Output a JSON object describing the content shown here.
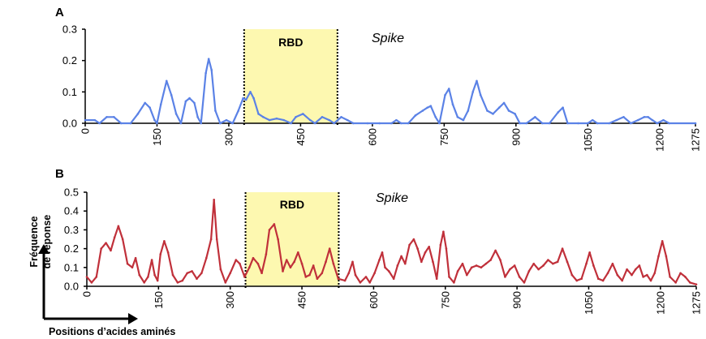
{
  "chart_data": [
    {
      "type": "line",
      "panel": "A",
      "region_label": "RBD",
      "region": [
        332,
        527
      ],
      "annotation": "Spike",
      "color": "#5b82e6",
      "ylim": [
        0,
        0.3
      ],
      "yticks": [
        0,
        0.1,
        0.2,
        0.3
      ],
      "ytick_labels": [
        "0.0",
        "0.1",
        "0.2",
        "0.3"
      ],
      "xlim": [
        0,
        1275
      ],
      "xticks": [
        0,
        150,
        300,
        450,
        600,
        750,
        900,
        1050,
        1200,
        1275
      ],
      "xtick_labels": [
        "0",
        "150",
        "300",
        "450",
        "600",
        "750",
        "900",
        "1050",
        "1200",
        "1275"
      ],
      "points": [
        [
          0,
          0.01
        ],
        [
          20,
          0.01
        ],
        [
          30,
          0.0
        ],
        [
          45,
          0.02
        ],
        [
          60,
          0.02
        ],
        [
          75,
          0.0
        ],
        [
          95,
          0.0
        ],
        [
          110,
          0.03
        ],
        [
          125,
          0.065
        ],
        [
          135,
          0.05
        ],
        [
          145,
          0.01
        ],
        [
          150,
          0.0
        ],
        [
          158,
          0.06
        ],
        [
          170,
          0.135
        ],
        [
          180,
          0.09
        ],
        [
          190,
          0.03
        ],
        [
          200,
          0.0
        ],
        [
          210,
          0.07
        ],
        [
          218,
          0.08
        ],
        [
          228,
          0.065
        ],
        [
          235,
          0.02
        ],
        [
          242,
          0.0
        ],
        [
          252,
          0.16
        ],
        [
          258,
          0.205
        ],
        [
          264,
          0.17
        ],
        [
          272,
          0.04
        ],
        [
          282,
          0.0
        ],
        [
          295,
          0.01
        ],
        [
          308,
          0.0
        ],
        [
          320,
          0.04
        ],
        [
          330,
          0.08
        ],
        [
          336,
          0.075
        ],
        [
          345,
          0.1
        ],
        [
          352,
          0.08
        ],
        [
          362,
          0.03
        ],
        [
          372,
          0.02
        ],
        [
          385,
          0.01
        ],
        [
          400,
          0.015
        ],
        [
          415,
          0.01
        ],
        [
          430,
          0.0
        ],
        [
          440,
          0.02
        ],
        [
          455,
          0.03
        ],
        [
          470,
          0.01
        ],
        [
          480,
          0.0
        ],
        [
          495,
          0.02
        ],
        [
          510,
          0.01
        ],
        [
          520,
          0.0
        ],
        [
          535,
          0.02
        ],
        [
          548,
          0.01
        ],
        [
          560,
          0.0
        ],
        [
          590,
          0.0
        ],
        [
          615,
          0.0
        ],
        [
          640,
          0.0
        ],
        [
          650,
          0.01
        ],
        [
          660,
          0.0
        ],
        [
          675,
          0.0
        ],
        [
          690,
          0.025
        ],
        [
          705,
          0.04
        ],
        [
          715,
          0.05
        ],
        [
          722,
          0.055
        ],
        [
          732,
          0.02
        ],
        [
          740,
          0.0
        ],
        [
          752,
          0.09
        ],
        [
          760,
          0.11
        ],
        [
          768,
          0.06
        ],
        [
          778,
          0.02
        ],
        [
          790,
          0.01
        ],
        [
          800,
          0.04
        ],
        [
          810,
          0.1
        ],
        [
          818,
          0.135
        ],
        [
          826,
          0.09
        ],
        [
          840,
          0.04
        ],
        [
          852,
          0.03
        ],
        [
          865,
          0.05
        ],
        [
          875,
          0.065
        ],
        [
          885,
          0.04
        ],
        [
          898,
          0.03
        ],
        [
          908,
          0.0
        ],
        [
          922,
          0.0
        ],
        [
          940,
          0.02
        ],
        [
          955,
          0.0
        ],
        [
          970,
          0.0
        ],
        [
          988,
          0.035
        ],
        [
          998,
          0.05
        ],
        [
          1008,
          0.0
        ],
        [
          1030,
          0.0
        ],
        [
          1050,
          0.0
        ],
        [
          1060,
          0.01
        ],
        [
          1070,
          0.0
        ],
        [
          1095,
          0.0
        ],
        [
          1110,
          0.01
        ],
        [
          1125,
          0.02
        ],
        [
          1140,
          0.0
        ],
        [
          1155,
          0.01
        ],
        [
          1168,
          0.02
        ],
        [
          1176,
          0.02
        ],
        [
          1185,
          0.01
        ],
        [
          1195,
          0.0
        ],
        [
          1208,
          0.01
        ],
        [
          1220,
          0.0
        ],
        [
          1275,
          0.0
        ]
      ]
    },
    {
      "type": "line",
      "panel": "B",
      "region_label": "RBD",
      "region": [
        332,
        527
      ],
      "annotation": "Spike",
      "color": "#c0303a",
      "ylim": [
        0,
        0.5
      ],
      "yticks": [
        0,
        0.1,
        0.2,
        0.3,
        0.4,
        0.5
      ],
      "ytick_labels": [
        "0.0",
        "0.1",
        "0.2",
        "0.3",
        "0.4",
        "0.5"
      ],
      "xlim": [
        0,
        1275
      ],
      "xticks": [
        0,
        150,
        300,
        450,
        600,
        750,
        900,
        1050,
        1200,
        1275
      ],
      "xtick_labels": [
        "0",
        "150",
        "300",
        "450",
        "600",
        "750",
        "900",
        "1050",
        "1200",
        "1275"
      ],
      "xlabel": "Positions d’acides aminés",
      "ylabel_lines": [
        "Fréquence",
        "de réponse"
      ],
      "points": [
        [
          0,
          0.05
        ],
        [
          10,
          0.02
        ],
        [
          20,
          0.05
        ],
        [
          30,
          0.2
        ],
        [
          40,
          0.23
        ],
        [
          50,
          0.19
        ],
        [
          58,
          0.26
        ],
        [
          66,
          0.32
        ],
        [
          75,
          0.25
        ],
        [
          85,
          0.12
        ],
        [
          95,
          0.1
        ],
        [
          102,
          0.15
        ],
        [
          110,
          0.06
        ],
        [
          120,
          0.02
        ],
        [
          128,
          0.05
        ],
        [
          136,
          0.14
        ],
        [
          142,
          0.06
        ],
        [
          148,
          0.03
        ],
        [
          154,
          0.17
        ],
        [
          162,
          0.24
        ],
        [
          170,
          0.18
        ],
        [
          180,
          0.06
        ],
        [
          190,
          0.02
        ],
        [
          200,
          0.03
        ],
        [
          210,
          0.07
        ],
        [
          220,
          0.08
        ],
        [
          230,
          0.04
        ],
        [
          240,
          0.07
        ],
        [
          250,
          0.15
        ],
        [
          260,
          0.25
        ],
        [
          266,
          0.46
        ],
        [
          272,
          0.25
        ],
        [
          280,
          0.09
        ],
        [
          290,
          0.02
        ],
        [
          300,
          0.07
        ],
        [
          312,
          0.14
        ],
        [
          320,
          0.12
        ],
        [
          330,
          0.05
        ],
        [
          340,
          0.1
        ],
        [
          348,
          0.15
        ],
        [
          358,
          0.12
        ],
        [
          366,
          0.07
        ],
        [
          375,
          0.17
        ],
        [
          382,
          0.3
        ],
        [
          392,
          0.33
        ],
        [
          400,
          0.25
        ],
        [
          410,
          0.08
        ],
        [
          418,
          0.14
        ],
        [
          426,
          0.1
        ],
        [
          434,
          0.13
        ],
        [
          442,
          0.18
        ],
        [
          450,
          0.12
        ],
        [
          458,
          0.05
        ],
        [
          466,
          0.06
        ],
        [
          474,
          0.11
        ],
        [
          482,
          0.04
        ],
        [
          492,
          0.07
        ],
        [
          500,
          0.13
        ],
        [
          508,
          0.2
        ],
        [
          516,
          0.12
        ],
        [
          526,
          0.04
        ],
        [
          540,
          0.03
        ],
        [
          548,
          0.07
        ],
        [
          556,
          0.13
        ],
        [
          562,
          0.06
        ],
        [
          572,
          0.02
        ],
        [
          584,
          0.05
        ],
        [
          592,
          0.02
        ],
        [
          602,
          0.07
        ],
        [
          612,
          0.14
        ],
        [
          618,
          0.18
        ],
        [
          624,
          0.1
        ],
        [
          632,
          0.08
        ],
        [
          642,
          0.04
        ],
        [
          650,
          0.11
        ],
        [
          658,
          0.16
        ],
        [
          666,
          0.12
        ],
        [
          675,
          0.22
        ],
        [
          684,
          0.25
        ],
        [
          692,
          0.2
        ],
        [
          700,
          0.13
        ],
        [
          708,
          0.18
        ],
        [
          716,
          0.21
        ],
        [
          724,
          0.13
        ],
        [
          732,
          0.04
        ],
        [
          740,
          0.22
        ],
        [
          746,
          0.29
        ],
        [
          752,
          0.2
        ],
        [
          758,
          0.05
        ],
        [
          768,
          0.02
        ],
        [
          776,
          0.08
        ],
        [
          786,
          0.12
        ],
        [
          795,
          0.06
        ],
        [
          805,
          0.1
        ],
        [
          815,
          0.11
        ],
        [
          825,
          0.1
        ],
        [
          835,
          0.12
        ],
        [
          845,
          0.14
        ],
        [
          855,
          0.19
        ],
        [
          865,
          0.14
        ],
        [
          875,
          0.05
        ],
        [
          885,
          0.09
        ],
        [
          895,
          0.11
        ],
        [
          905,
          0.05
        ],
        [
          915,
          0.02
        ],
        [
          925,
          0.08
        ],
        [
          935,
          0.12
        ],
        [
          945,
          0.09
        ],
        [
          955,
          0.11
        ],
        [
          965,
          0.14
        ],
        [
          975,
          0.12
        ],
        [
          985,
          0.13
        ],
        [
          995,
          0.2
        ],
        [
          1005,
          0.13
        ],
        [
          1015,
          0.06
        ],
        [
          1025,
          0.03
        ],
        [
          1035,
          0.04
        ],
        [
          1045,
          0.12
        ],
        [
          1052,
          0.18
        ],
        [
          1060,
          0.11
        ],
        [
          1070,
          0.04
        ],
        [
          1080,
          0.03
        ],
        [
          1090,
          0.07
        ],
        [
          1100,
          0.12
        ],
        [
          1110,
          0.06
        ],
        [
          1120,
          0.03
        ],
        [
          1130,
          0.09
        ],
        [
          1140,
          0.06
        ],
        [
          1148,
          0.09
        ],
        [
          1156,
          0.11
        ],
        [
          1164,
          0.05
        ],
        [
          1172,
          0.06
        ],
        [
          1180,
          0.03
        ],
        [
          1188,
          0.07
        ],
        [
          1196,
          0.16
        ],
        [
          1204,
          0.24
        ],
        [
          1212,
          0.16
        ],
        [
          1220,
          0.05
        ],
        [
          1232,
          0.02
        ],
        [
          1242,
          0.07
        ],
        [
          1252,
          0.05
        ],
        [
          1262,
          0.02
        ],
        [
          1275,
          0.01
        ]
      ]
    }
  ]
}
